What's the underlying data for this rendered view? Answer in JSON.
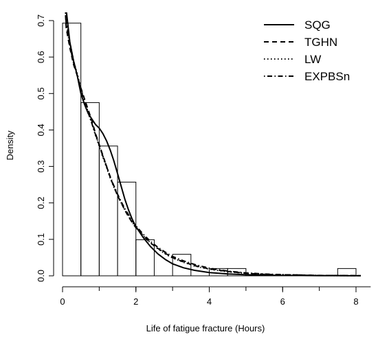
{
  "chart_data": {
    "type": "histogram-with-density-curves",
    "xlabel": "Life of fatigue fracture (Hours)",
    "ylabel": "Density",
    "xlim": [
      0,
      8.4
    ],
    "ylim": [
      0,
      0.7
    ],
    "x_ticks": [
      0,
      2,
      4,
      6,
      8
    ],
    "y_ticks": [
      0.0,
      0.1,
      0.2,
      0.3,
      0.4,
      0.5,
      0.6,
      0.7
    ],
    "y_tick_labels": [
      "0.0",
      "0.1",
      "0.2",
      "0.3",
      "0.4",
      "0.5",
      "0.6",
      "0.7"
    ],
    "x_tick_labels": [
      "0",
      "2",
      "4",
      "6",
      "8"
    ],
    "histogram": {
      "bin_width": 0.5,
      "bins": [
        {
          "x0": 0.0,
          "x1": 0.5,
          "density": 0.693
        },
        {
          "x0": 0.5,
          "x1": 1.0,
          "density": 0.475
        },
        {
          "x0": 1.0,
          "x1": 1.5,
          "density": 0.356
        },
        {
          "x0": 1.5,
          "x1": 2.0,
          "density": 0.257
        },
        {
          "x0": 2.0,
          "x1": 2.5,
          "density": 0.099
        },
        {
          "x0": 2.5,
          "x1": 3.0,
          "density": 0.0
        },
        {
          "x0": 3.0,
          "x1": 3.5,
          "density": 0.059
        },
        {
          "x0": 3.5,
          "x1": 4.0,
          "density": 0.0
        },
        {
          "x0": 4.0,
          "x1": 4.5,
          "density": 0.02
        },
        {
          "x0": 4.5,
          "x1": 5.0,
          "density": 0.02
        },
        {
          "x0": 7.5,
          "x1": 8.0,
          "density": 0.02
        }
      ]
    },
    "series": [
      {
        "name": "SQG",
        "line_style": "solid",
        "x": [
          0.1,
          0.2,
          0.3,
          0.4,
          0.5,
          0.6,
          0.7,
          0.8,
          0.9,
          1.0,
          1.1,
          1.2,
          1.3,
          1.4,
          1.5,
          1.6,
          1.7,
          1.8,
          1.9,
          2.0,
          2.2,
          2.4,
          2.6,
          2.8,
          3.0,
          3.3,
          3.6,
          4.0,
          4.5,
          5.0,
          5.5,
          6.0,
          6.5,
          7.0,
          7.5,
          8.0,
          8.4
        ],
        "y": [
          0.73,
          0.64,
          0.59,
          0.55,
          0.5,
          0.47,
          0.445,
          0.43,
          0.415,
          0.405,
          0.39,
          0.37,
          0.345,
          0.315,
          0.28,
          0.245,
          0.21,
          0.18,
          0.155,
          0.135,
          0.105,
          0.08,
          0.06,
          0.045,
          0.033,
          0.022,
          0.015,
          0.009,
          0.005,
          0.003,
          0.002,
          0.001,
          0.001,
          0.0005,
          0.0003,
          0.0002,
          0.0001
        ]
      },
      {
        "name": "TGHN",
        "line_style": "dashed",
        "x": [
          0.1,
          0.2,
          0.3,
          0.4,
          0.5,
          0.6,
          0.7,
          0.8,
          0.9,
          1.0,
          1.1,
          1.2,
          1.3,
          1.4,
          1.5,
          1.6,
          1.7,
          1.8,
          1.9,
          2.0,
          2.2,
          2.4,
          2.6,
          2.8,
          3.0,
          3.3,
          3.6,
          4.0,
          4.5,
          5.0,
          5.5,
          6.0,
          6.5,
          7.0,
          7.5,
          8.0,
          8.4
        ],
        "y": [
          0.68,
          0.625,
          0.58,
          0.55,
          0.515,
          0.485,
          0.455,
          0.425,
          0.39,
          0.36,
          0.33,
          0.3,
          0.27,
          0.245,
          0.22,
          0.2,
          0.18,
          0.162,
          0.146,
          0.132,
          0.11,
          0.09,
          0.075,
          0.062,
          0.05,
          0.038,
          0.028,
          0.019,
          0.012,
          0.007,
          0.004,
          0.003,
          0.002,
          0.001,
          0.001,
          0.0005,
          0.0003
        ]
      },
      {
        "name": "LW",
        "line_style": "dotted",
        "x": [
          0.1,
          0.2,
          0.3,
          0.4,
          0.5,
          0.6,
          0.7,
          0.8,
          0.9,
          1.0,
          1.1,
          1.2,
          1.3,
          1.4,
          1.5,
          1.6,
          1.7,
          1.8,
          1.9,
          2.0,
          2.2,
          2.4,
          2.6,
          2.8,
          3.0,
          3.3,
          3.6,
          4.0,
          4.5,
          5.0,
          5.5,
          6.0,
          6.5,
          7.0,
          7.5,
          8.0,
          8.4
        ],
        "y": [
          0.7,
          0.64,
          0.59,
          0.555,
          0.515,
          0.48,
          0.448,
          0.418,
          0.385,
          0.355,
          0.325,
          0.297,
          0.268,
          0.243,
          0.22,
          0.2,
          0.18,
          0.163,
          0.147,
          0.133,
          0.11,
          0.09,
          0.074,
          0.06,
          0.049,
          0.037,
          0.027,
          0.018,
          0.011,
          0.007,
          0.004,
          0.003,
          0.002,
          0.001,
          0.0007,
          0.0004,
          0.0002
        ]
      },
      {
        "name": "EXPBSn",
        "line_style": "dotdash",
        "x": [
          0.1,
          0.2,
          0.3,
          0.4,
          0.5,
          0.6,
          0.7,
          0.8,
          0.9,
          1.0,
          1.1,
          1.2,
          1.3,
          1.4,
          1.5,
          1.6,
          1.7,
          1.8,
          1.9,
          2.0,
          2.2,
          2.4,
          2.6,
          2.8,
          3.0,
          3.3,
          3.6,
          4.0,
          4.5,
          5.0,
          5.5,
          6.0,
          6.5,
          7.0,
          7.5,
          8.0,
          8.4
        ],
        "y": [
          0.69,
          0.63,
          0.585,
          0.55,
          0.51,
          0.478,
          0.447,
          0.418,
          0.387,
          0.358,
          0.328,
          0.3,
          0.272,
          0.247,
          0.224,
          0.203,
          0.184,
          0.167,
          0.151,
          0.137,
          0.114,
          0.094,
          0.078,
          0.065,
          0.053,
          0.041,
          0.031,
          0.021,
          0.013,
          0.008,
          0.005,
          0.003,
          0.002,
          0.0012,
          0.0008,
          0.0005,
          0.0003
        ]
      }
    ],
    "legend": {
      "position": "top-right",
      "entries": [
        "SQG",
        "TGHN",
        "LW",
        "EXPBSn"
      ]
    },
    "grid": false
  }
}
